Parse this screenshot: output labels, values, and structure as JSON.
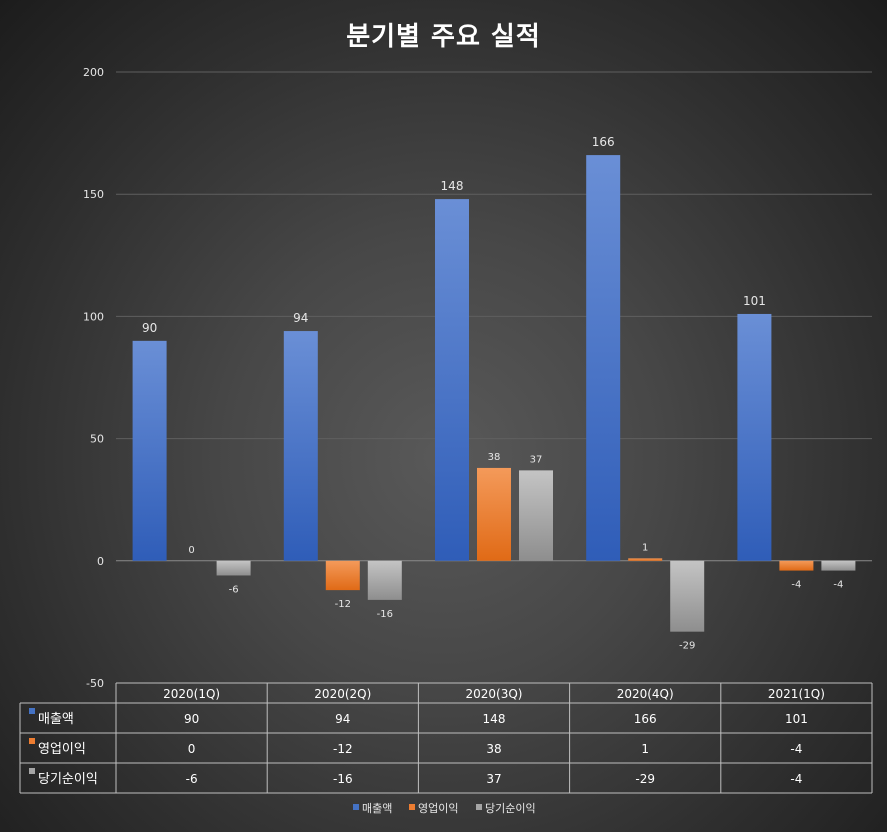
{
  "chart_data": {
    "type": "bar",
    "title": "분기별 주요 실적",
    "categories": [
      "2020(1Q)",
      "2020(2Q)",
      "2020(3Q)",
      "2020(4Q)",
      "2021(1Q)"
    ],
    "series": [
      {
        "name": "매출액",
        "values": [
          90,
          94,
          148,
          166,
          101
        ],
        "color": "#4472c4"
      },
      {
        "name": "영업이익",
        "values": [
          0,
          -12,
          38,
          1,
          -4
        ],
        "color": "#ed7d31"
      },
      {
        "name": "당기순이익",
        "values": [
          -6,
          -16,
          37,
          -29,
          -4
        ],
        "color": "#a5a5a5"
      }
    ],
    "ylim": [
      -50,
      200
    ],
    "yticks": [
      -50,
      0,
      50,
      100,
      150,
      200
    ],
    "grid": true,
    "data_table": true,
    "legend_position": "bottom"
  }
}
